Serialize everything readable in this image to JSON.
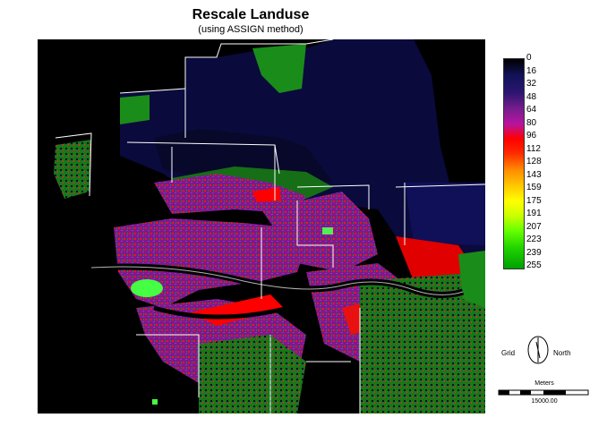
{
  "title": "Rescale Landuse",
  "subtitle": "(using ASSIGN method)",
  "legend": {
    "labels": [
      "0",
      "16",
      "32",
      "48",
      "64",
      "80",
      "96",
      "112",
      "128",
      "143",
      "159",
      "175",
      "191",
      "207",
      "223",
      "239",
      "255"
    ]
  },
  "compass": {
    "left_label": "Grid",
    "right_label": "North"
  },
  "scale_bar": {
    "unit_label": "Meters",
    "value_label": "15000.00"
  },
  "colors": {
    "background": "#000000",
    "dark_blue": "#0a0a3a",
    "purple": "#8a1fa0",
    "red": "#ff0000",
    "green": "#1a8c1a",
    "bright_green": "#33ff33",
    "boundary": "#ffffff"
  }
}
